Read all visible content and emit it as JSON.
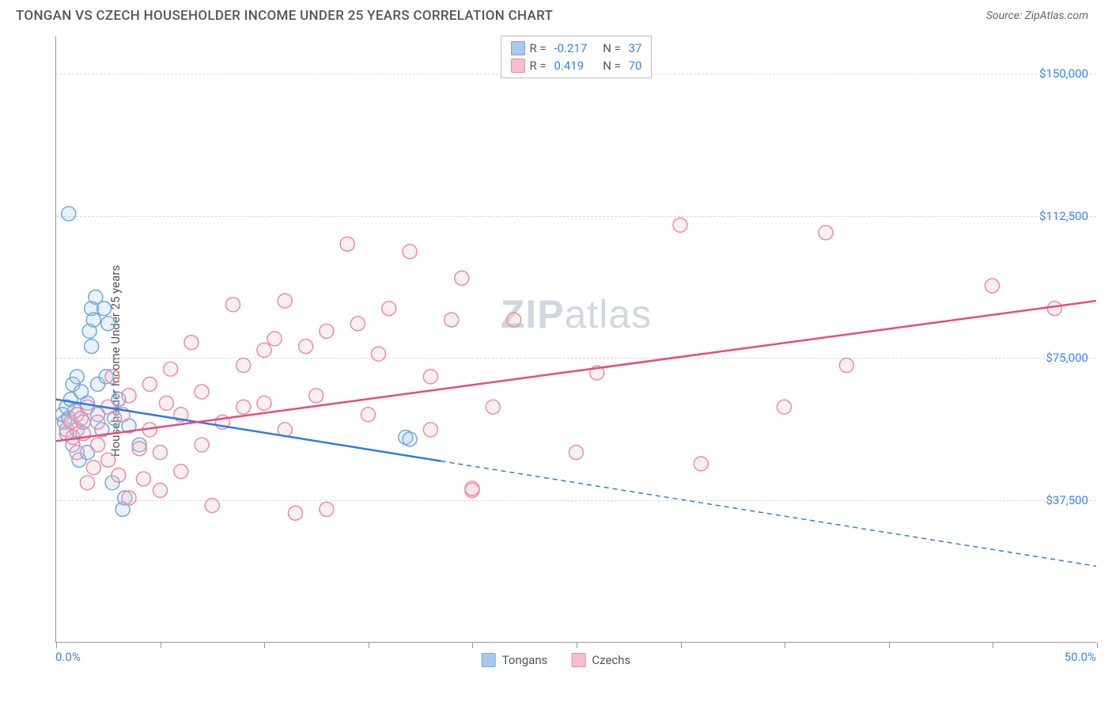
{
  "title": "TONGAN VS CZECH HOUSEHOLDER INCOME UNDER 25 YEARS CORRELATION CHART",
  "source": "Source: ZipAtlas.com",
  "y_axis_label": "Householder Income Under 25 years",
  "watermark_bold": "ZIP",
  "watermark_rest": "atlas",
  "chart": {
    "type": "scatter-correlation",
    "background_color": "#ffffff",
    "grid_color": "#d8d8d8",
    "axis_color": "#999999",
    "label_color": "#3b82f6",
    "x_min": 0,
    "x_max": 50,
    "x_min_label": "0.0%",
    "x_max_label": "50.0%",
    "y_min": 0,
    "y_max": 160000,
    "y_ticks": [
      37500,
      75000,
      112500,
      150000
    ],
    "y_tick_labels": [
      "$37,500",
      "$75,000",
      "$112,500",
      "$150,000"
    ],
    "x_tick_positions": [
      0,
      5,
      10,
      15,
      20,
      25,
      30,
      35,
      40,
      45,
      50
    ],
    "point_radius": 9,
    "line_width": 2.5,
    "series": [
      {
        "name": "Tongans",
        "color_fill": "#a8c8ec",
        "color_stroke": "#6fa8e0",
        "line_color": "#2f7de0",
        "R": "-0.217",
        "N": "37",
        "trend": {
          "y_at_xmin": 64000,
          "y_at_xmax": 20000,
          "solid_until_x": 18.5
        },
        "points": [
          [
            0.3,
            60000
          ],
          [
            0.4,
            58000
          ],
          [
            0.5,
            62000
          ],
          [
            0.5,
            55000
          ],
          [
            0.6,
            59000
          ],
          [
            0.7,
            64000
          ],
          [
            0.8,
            52000
          ],
          [
            0.8,
            68000
          ],
          [
            0.9,
            61000
          ],
          [
            1.0,
            56000
          ],
          [
            1.0,
            70000
          ],
          [
            1.1,
            48000
          ],
          [
            1.2,
            66000
          ],
          [
            1.3,
            58000
          ],
          [
            0.6,
            113000
          ],
          [
            1.5,
            63000
          ],
          [
            1.5,
            50000
          ],
          [
            1.6,
            82000
          ],
          [
            1.7,
            88000
          ],
          [
            1.7,
            78000
          ],
          [
            1.8,
            85000
          ],
          [
            1.9,
            91000
          ],
          [
            2.0,
            68000
          ],
          [
            2.0,
            60000
          ],
          [
            2.2,
            56000
          ],
          [
            2.3,
            88000
          ],
          [
            2.4,
            70000
          ],
          [
            2.5,
            84000
          ],
          [
            2.7,
            42000
          ],
          [
            2.8,
            59000
          ],
          [
            3.0,
            64000
          ],
          [
            3.2,
            35000
          ],
          [
            3.3,
            38000
          ],
          [
            3.5,
            57000
          ],
          [
            4.0,
            52000
          ],
          [
            16.8,
            54000
          ],
          [
            17.0,
            53500
          ]
        ]
      },
      {
        "name": "Czechs",
        "color_fill": "#f5c0cb",
        "color_stroke": "#ec8ba2",
        "line_color": "#e94b7a",
        "R": "0.419",
        "N": "70",
        "trend": {
          "y_at_xmin": 53000,
          "y_at_xmax": 90000,
          "solid_until_x": 50
        },
        "points": [
          [
            0.5,
            56000
          ],
          [
            0.7,
            58000
          ],
          [
            0.8,
            54000
          ],
          [
            1.0,
            60000
          ],
          [
            1.0,
            50000
          ],
          [
            1.2,
            59000
          ],
          [
            1.3,
            55000
          ],
          [
            1.5,
            42000
          ],
          [
            1.5,
            62000
          ],
          [
            1.8,
            46000
          ],
          [
            2.0,
            58000
          ],
          [
            2.0,
            52000
          ],
          [
            2.5,
            62000
          ],
          [
            2.5,
            48000
          ],
          [
            2.7,
            70000
          ],
          [
            3.0,
            44000
          ],
          [
            3.2,
            60000
          ],
          [
            3.5,
            38000
          ],
          [
            3.5,
            65000
          ],
          [
            4.0,
            51000
          ],
          [
            4.2,
            43000
          ],
          [
            4.5,
            56000
          ],
          [
            4.5,
            68000
          ],
          [
            5.0,
            50000
          ],
          [
            5.0,
            40000
          ],
          [
            5.3,
            63000
          ],
          [
            5.5,
            72000
          ],
          [
            6.0,
            45000
          ],
          [
            6.0,
            60000
          ],
          [
            6.5,
            79000
          ],
          [
            7.0,
            52000
          ],
          [
            7.0,
            66000
          ],
          [
            7.5,
            36000
          ],
          [
            8.0,
            58000
          ],
          [
            8.5,
            89000
          ],
          [
            9.0,
            62000
          ],
          [
            9.0,
            73000
          ],
          [
            10.0,
            77000
          ],
          [
            10.0,
            63000
          ],
          [
            10.5,
            80000
          ],
          [
            11.0,
            56000
          ],
          [
            11.0,
            90000
          ],
          [
            11.5,
            34000
          ],
          [
            12.0,
            78000
          ],
          [
            12.5,
            65000
          ],
          [
            13.0,
            82000
          ],
          [
            13.0,
            35000
          ],
          [
            14.0,
            105000
          ],
          [
            14.5,
            84000
          ],
          [
            15.0,
            60000
          ],
          [
            15.5,
            76000
          ],
          [
            16.0,
            88000
          ],
          [
            17.0,
            103000
          ],
          [
            18.0,
            70000
          ],
          [
            18.0,
            56000
          ],
          [
            19.0,
            85000
          ],
          [
            19.5,
            96000
          ],
          [
            20.0,
            40000
          ],
          [
            20.0,
            40500
          ],
          [
            21.0,
            62000
          ],
          [
            22.0,
            85000
          ],
          [
            25.0,
            50000
          ],
          [
            26.0,
            71000
          ],
          [
            30.0,
            110000
          ],
          [
            31.0,
            47000
          ],
          [
            35.0,
            62000
          ],
          [
            37.0,
            108000
          ],
          [
            38.0,
            73000
          ],
          [
            45.0,
            94000
          ],
          [
            48.0,
            88000
          ]
        ]
      }
    ],
    "legend_labels": [
      "Tongans",
      "Czechs"
    ]
  }
}
